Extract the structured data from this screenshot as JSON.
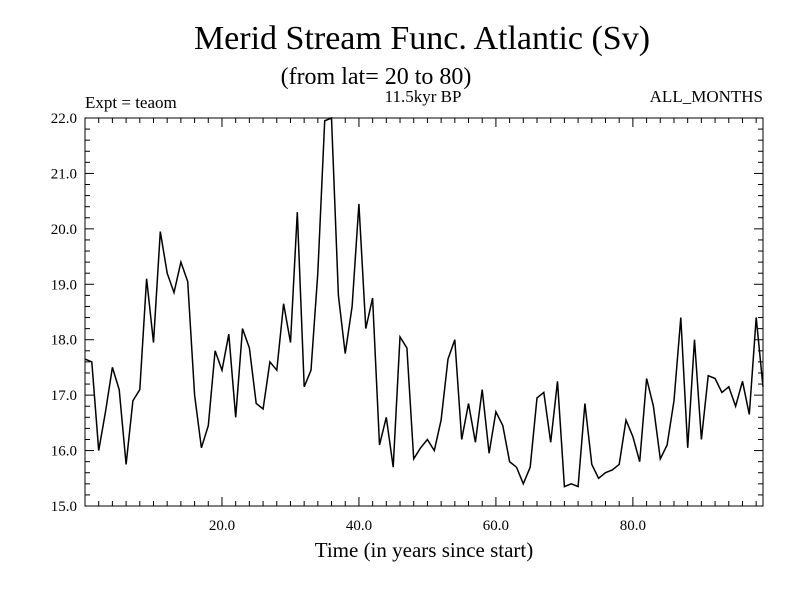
{
  "header": {
    "title": "Merid Stream Func. Atlantic (Sv)",
    "subtitle": "(from lat= 20 to 80)",
    "expt": "Expt = teaom",
    "period": "11.5kyr BP",
    "months": "ALL_MONTHS"
  },
  "chart_data": {
    "type": "line",
    "title": "Merid Stream Func. Atlantic (Sv)",
    "subtitle": "(from lat= 20 to 80)",
    "xlabel": "Time (in years since start)",
    "ylabel": "",
    "xlim": [
      0,
      99
    ],
    "ylim": [
      15.0,
      22.0
    ],
    "xticks": [
      20,
      40,
      60,
      80
    ],
    "xtick_labels": [
      "20.0",
      "40.0",
      "60.0",
      "80.0"
    ],
    "yticks": [
      15,
      16,
      17,
      18,
      19,
      20,
      21,
      22
    ],
    "ytick_labels": [
      "15.0",
      "16.0",
      "17.0",
      "18.0",
      "19.0",
      "20.0",
      "21.0",
      "22.0"
    ],
    "series": [
      {
        "name": "Merid Stream Func. Atlantic",
        "x": [
          0,
          1,
          2,
          3,
          4,
          5,
          6,
          7,
          8,
          9,
          10,
          11,
          12,
          13,
          14,
          15,
          16,
          17,
          18,
          19,
          20,
          21,
          22,
          23,
          24,
          25,
          26,
          27,
          28,
          29,
          30,
          31,
          32,
          33,
          34,
          35,
          36,
          37,
          38,
          39,
          40,
          41,
          42,
          43,
          44,
          45,
          46,
          47,
          48,
          49,
          50,
          51,
          52,
          53,
          54,
          55,
          56,
          57,
          58,
          59,
          60,
          61,
          62,
          63,
          64,
          65,
          66,
          67,
          68,
          69,
          70,
          71,
          72,
          73,
          74,
          75,
          76,
          77,
          78,
          79,
          80,
          81,
          82,
          83,
          84,
          85,
          86,
          87,
          88,
          89,
          90,
          91,
          92,
          93,
          94,
          95,
          96,
          97,
          98,
          99
        ],
        "values": [
          17.65,
          17.6,
          16.0,
          16.7,
          17.5,
          17.1,
          15.75,
          16.9,
          17.1,
          19.1,
          17.95,
          19.95,
          19.2,
          18.85,
          19.4,
          19.05,
          17.0,
          16.05,
          16.45,
          17.8,
          17.45,
          18.1,
          16.6,
          18.2,
          17.85,
          16.85,
          16.75,
          17.6,
          17.45,
          18.65,
          17.95,
          20.3,
          17.15,
          17.45,
          19.2,
          21.95,
          22.0,
          18.8,
          17.75,
          18.6,
          20.45,
          18.2,
          18.75,
          16.1,
          16.6,
          15.7,
          18.05,
          17.85,
          15.85,
          16.05,
          16.2,
          16.0,
          16.55,
          17.65,
          18.0,
          16.2,
          16.85,
          16.15,
          17.1,
          15.95,
          16.7,
          16.45,
          15.8,
          15.7,
          15.4,
          15.7,
          16.95,
          17.05,
          16.15,
          17.25,
          15.35,
          15.4,
          15.35,
          16.85,
          15.75,
          15.5,
          15.6,
          15.65,
          15.75,
          16.55,
          16.25,
          15.8,
          17.3,
          16.8,
          15.85,
          16.1,
          16.9,
          18.4,
          16.05,
          18.0,
          16.2,
          17.35,
          17.3,
          17.05,
          17.15,
          16.8,
          17.25,
          16.65,
          18.4,
          17.15
        ]
      }
    ]
  }
}
